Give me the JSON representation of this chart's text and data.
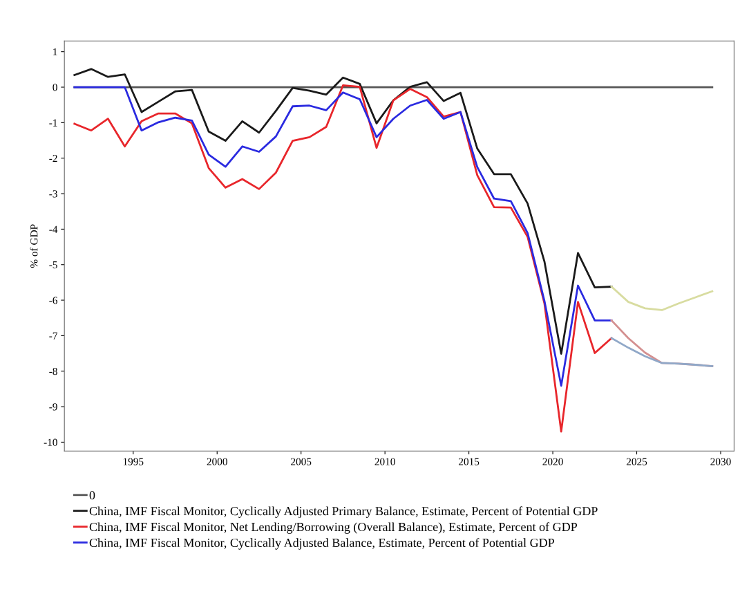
{
  "chart_data": {
    "type": "line",
    "ylabel": "% of GDP",
    "xlim": [
      1990.9,
      2030.8
    ],
    "xticks": [
      1995,
      2000,
      2005,
      2010,
      2015,
      2020,
      2025,
      2030
    ],
    "ylim": [
      -10.25,
      1.3
    ],
    "yticks": [
      1,
      0,
      -1,
      -2,
      -3,
      -4,
      -5,
      -6,
      -7,
      -8,
      -9,
      -10
    ],
    "grid": false,
    "legend": "bottom",
    "marker": "none",
    "line_style": "solid",
    "series": [
      {
        "name": "0",
        "color": "#555555",
        "x": [
          1991.5,
          2029.5
        ],
        "values": [
          0,
          0
        ]
      },
      {
        "name": "China, IMF Fiscal Monitor, Cyclically Adjusted Primary Balance, Estimate, Percent of Potential GDP",
        "color": "#1a1a1a",
        "x": [
          1991.5,
          1992.5,
          1993.5,
          1994.5,
          1995.5,
          1996.5,
          1997.5,
          1998.5,
          1999.5,
          2000.5,
          2001.5,
          2002.5,
          2003.5,
          2004.5,
          2005.5,
          2006.5,
          2007.5,
          2008.5,
          2009.5,
          2010.5,
          2011.5,
          2012.5,
          2013.5,
          2014.5,
          2015.5,
          2016.5,
          2017.5,
          2018.5,
          2019.5,
          2020.5,
          2021.5,
          2022.5,
          2023.5
        ],
        "values": [
          0.34,
          0.51,
          0.29,
          0.36,
          -0.7,
          -0.41,
          -0.12,
          -0.08,
          -1.25,
          -1.51,
          -0.96,
          -1.28,
          -0.67,
          -0.02,
          -0.1,
          -0.21,
          0.27,
          0.09,
          -1.02,
          -0.37,
          0.01,
          0.14,
          -0.39,
          -0.16,
          -1.73,
          -2.45,
          -2.45,
          -3.28,
          -4.91,
          -7.51,
          -4.67,
          -5.64,
          -5.62
        ]
      },
      {
        "name": "China, IMF Fiscal Monitor, Net Lending/Borrowing (Overall Balance), Estimate, Percent of GDP",
        "color": "#e8262b",
        "x": [
          1991.5,
          1992.5,
          1993.5,
          1994.5,
          1995.5,
          1996.5,
          1997.5,
          1998.5,
          1999.5,
          2000.5,
          2001.5,
          2002.5,
          2003.5,
          2004.5,
          2005.5,
          2006.5,
          2007.5,
          2008.5,
          2009.5,
          2010.5,
          2011.5,
          2012.5,
          2013.5,
          2014.5,
          2015.5,
          2016.5,
          2017.5,
          2018.5,
          2019.5,
          2020.5,
          2021.5,
          2022.5,
          2023.5
        ],
        "values": [
          -1.03,
          -1.22,
          -0.89,
          -1.67,
          -0.96,
          -0.74,
          -0.74,
          -1.02,
          -2.28,
          -2.83,
          -2.59,
          -2.87,
          -2.41,
          -1.51,
          -1.41,
          -1.12,
          0.05,
          0.01,
          -1.71,
          -0.37,
          -0.05,
          -0.28,
          -0.83,
          -0.7,
          -2.48,
          -3.38,
          -3.39,
          -4.22,
          -6.09,
          -9.7,
          -6.05,
          -7.49,
          -7.07
        ]
      },
      {
        "name": "China, IMF Fiscal Monitor, Cyclically Adjusted Balance, Estimate, Percent of Potential GDP",
        "color": "#2a2ae0",
        "x": [
          1991.5,
          1992.5,
          1993.5,
          1994.5,
          1995.5,
          1996.5,
          1997.5,
          1998.5,
          1999.5,
          2000.5,
          2001.5,
          2002.5,
          2003.5,
          2004.5,
          2005.5,
          2006.5,
          2007.5,
          2008.5,
          2009.5,
          2010.5,
          2011.5,
          2012.5,
          2013.5,
          2014.5,
          2015.5,
          2016.5,
          2017.5,
          2018.5,
          2019.5,
          2020.5,
          2021.5,
          2022.5,
          2023.5
        ],
        "values": [
          0,
          0,
          0,
          0,
          -1.22,
          -0.99,
          -0.86,
          -0.94,
          -1.9,
          -2.24,
          -1.67,
          -1.82,
          -1.39,
          -0.54,
          -0.52,
          -0.65,
          -0.15,
          -0.34,
          -1.41,
          -0.89,
          -0.52,
          -0.36,
          -0.89,
          -0.7,
          -2.25,
          -3.14,
          -3.21,
          -4.11,
          -6.02,
          -8.41,
          -5.59,
          -6.57,
          -6.57
        ]
      },
      {
        "color": "#d8dca0",
        "x": [
          2023.5,
          2024.5,
          2025.5,
          2026.5,
          2027.5,
          2028.5,
          2029.5
        ],
        "values": [
          -5.62,
          -6.05,
          -6.23,
          -6.28,
          -6.09,
          -5.92,
          -5.75
        ]
      },
      {
        "color": "#d49090",
        "x": [
          2023.5,
          2024.5,
          2025.5,
          2026.5,
          2027.5,
          2028.5,
          2029.5
        ],
        "values": [
          -6.57,
          -7.07,
          -7.48,
          -7.77,
          -7.79,
          -7.82,
          -7.86
        ]
      },
      {
        "color": "#90a8c8",
        "x": [
          2023.5,
          2024.5,
          2025.5,
          2026.5,
          2027.5,
          2028.5,
          2029.5
        ],
        "values": [
          -7.07,
          -7.34,
          -7.58,
          -7.77,
          -7.79,
          -7.82,
          -7.86
        ]
      }
    ]
  }
}
